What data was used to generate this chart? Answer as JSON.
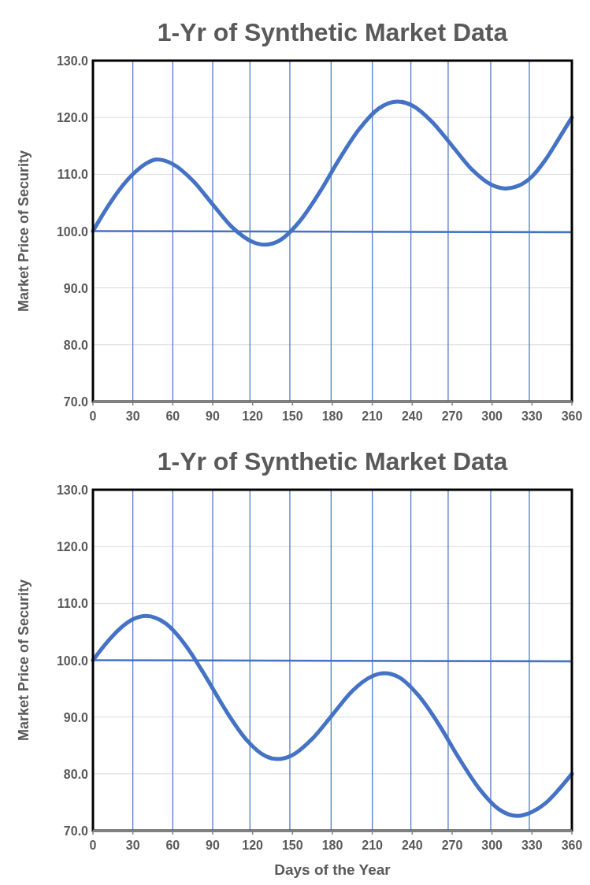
{
  "chart_data": [
    {
      "type": "line",
      "title": "1-Yr of Synthetic Market Data",
      "ylabel": "Market Price of Security",
      "xlim": [
        0,
        360
      ],
      "xticks": [
        0,
        30,
        60,
        90,
        120,
        150,
        180,
        210,
        240,
        270,
        300,
        330,
        360
      ],
      "ylim": [
        70,
        130
      ],
      "yticks": [
        {
          "value": 70,
          "label": "70.0"
        },
        {
          "value": 80,
          "label": "80.0"
        },
        {
          "value": 90,
          "label": "90.0"
        },
        {
          "value": 100,
          "label": "100.0"
        },
        {
          "value": 110,
          "label": "110.0"
        },
        {
          "value": 120,
          "label": "120.0"
        },
        {
          "value": 130,
          "label": "130.0"
        }
      ],
      "grid": "y",
      "line_style": "solid",
      "marker": "none",
      "series": [
        {
          "color": "#4472c4",
          "x": [
            0,
            10,
            20,
            30,
            40,
            48,
            60,
            75,
            90,
            105,
            120,
            129,
            140,
            155,
            170,
            185,
            200,
            215,
            229,
            240,
            255,
            270,
            285,
            300,
            310,
            320,
            330,
            340,
            350,
            360
          ],
          "values": [
            100,
            103.9,
            107.3,
            110.0,
            111.9,
            112.6,
            111.8,
            108.9,
            104.7,
            100.6,
            98.1,
            97.6,
            98.3,
            101.6,
            106.7,
            112.6,
            117.9,
            121.6,
            122.8,
            122.1,
            119.2,
            115.0,
            110.8,
            108.1,
            107.5,
            108.0,
            109.6,
            112.5,
            116.2,
            120.0
          ]
        },
        {
          "color": "#4472c4",
          "x": [
            0,
            360
          ],
          "values": [
            100,
            99.8
          ]
        }
      ],
      "ref_lines": [
        {
          "axis": "x",
          "value": 30,
          "color": "#4472c4"
        },
        {
          "axis": "x",
          "value": 60,
          "color": "#4472c4"
        },
        {
          "axis": "x",
          "value": 90,
          "color": "#4472c4"
        },
        {
          "axis": "x",
          "value": 118,
          "color": "#4472c4"
        },
        {
          "axis": "x",
          "value": 148,
          "color": "#4472c4"
        },
        {
          "axis": "x",
          "value": 179,
          "color": "#4472c4"
        },
        {
          "axis": "x",
          "value": 210,
          "color": "#4472c4"
        },
        {
          "axis": "x",
          "value": 239,
          "color": "#4472c4"
        },
        {
          "axis": "x",
          "value": 267,
          "color": "#4472c4"
        },
        {
          "axis": "x",
          "value": 299,
          "color": "#4472c4"
        },
        {
          "axis": "x",
          "value": 328,
          "color": "#4472c4"
        }
      ]
    },
    {
      "type": "line",
      "title": "1-Yr of Synthetic Market Data",
      "xlabel": "Days of the Year",
      "ylabel": "Market Price of Security",
      "xlim": [
        0,
        360
      ],
      "xticks": [
        0,
        30,
        60,
        90,
        120,
        150,
        180,
        210,
        240,
        270,
        300,
        330,
        360
      ],
      "ylim": [
        70,
        130
      ],
      "yticks": [
        {
          "value": 70,
          "label": "70.0"
        },
        {
          "value": 80,
          "label": "80.0"
        },
        {
          "value": 90,
          "label": "90.0"
        },
        {
          "value": 100,
          "label": "100.0"
        },
        {
          "value": 110,
          "label": "110.0"
        },
        {
          "value": 120,
          "label": "120.0"
        },
        {
          "value": 130,
          "label": "130.0"
        }
      ],
      "grid": "y",
      "line_style": "solid",
      "marker": "none",
      "series": [
        {
          "color": "#4472c4",
          "x": [
            0,
            10,
            20,
            30,
            40,
            55,
            70,
            85,
            100,
            115,
            130,
            139,
            150,
            165,
            180,
            195,
            210,
            219,
            230,
            245,
            260,
            275,
            290,
            305,
            319,
            330,
            340,
            350,
            360
          ],
          "values": [
            100,
            103.0,
            105.5,
            107.2,
            107.8,
            106.4,
            102.5,
            97.0,
            91.1,
            86.1,
            83.1,
            82.6,
            83.3,
            86.2,
            90.4,
            94.6,
            97.2,
            97.7,
            97.0,
            93.7,
            88.7,
            82.8,
            77.5,
            73.8,
            72.6,
            73.3,
            74.8,
            77.2,
            80.0
          ]
        },
        {
          "color": "#4472c4",
          "x": [
            0,
            360
          ],
          "values": [
            100,
            99.8
          ]
        }
      ],
      "ref_lines": [
        {
          "axis": "x",
          "value": 30,
          "color": "#4472c4"
        },
        {
          "axis": "x",
          "value": 60,
          "color": "#4472c4"
        },
        {
          "axis": "x",
          "value": 90,
          "color": "#4472c4"
        },
        {
          "axis": "x",
          "value": 118,
          "color": "#4472c4"
        },
        {
          "axis": "x",
          "value": 148,
          "color": "#4472c4"
        },
        {
          "axis": "x",
          "value": 179,
          "color": "#4472c4"
        },
        {
          "axis": "x",
          "value": 210,
          "color": "#4472c4"
        },
        {
          "axis": "x",
          "value": 239,
          "color": "#4472c4"
        },
        {
          "axis": "x",
          "value": 267,
          "color": "#4472c4"
        },
        {
          "axis": "x",
          "value": 299,
          "color": "#4472c4"
        },
        {
          "axis": "x",
          "value": 328,
          "color": "#4472c4"
        }
      ]
    }
  ]
}
